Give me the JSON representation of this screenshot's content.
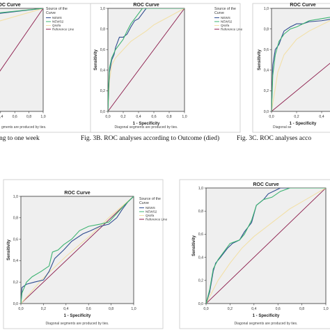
{
  "captions": {
    "fig_a": "ng to one week",
    "fig_b": "Fig. 3B. ROC analyses according to Outcome (died)",
    "fig_c": "Fig. 3C. ROC analyses acco"
  },
  "colors": {
    "news": "#2f4c8f",
    "news2": "#3cb371",
    "qsofa": "#f2e0a8",
    "reference": "#8b1a4a",
    "plot_bg": "#efefef",
    "axis": "#333333"
  },
  "chart_data": [
    {
      "id": "a",
      "type": "line",
      "title": "ROC Curve",
      "xlabel": "",
      "ylabel": "",
      "x_ticks": [
        "0,0",
        "0,2",
        "0,4",
        "0,6",
        "0,8",
        "1,0"
      ],
      "y_ticks": [],
      "xlim": [
        0,
        1
      ],
      "ylim": [
        0,
        1
      ],
      "legend": {
        "title": "Source of the Curve",
        "entries": [
          "NEWS",
          "NEWS2",
          "Qsofa",
          "Reference Line"
        ]
      },
      "footnote": "gments are produced by ties.",
      "series": [
        {
          "name": "NEWS",
          "color_key": "news",
          "x": [
            0,
            1
          ],
          "y": [
            0.92,
            1.0
          ]
        },
        {
          "name": "NEWS2",
          "color_key": "news2",
          "x": [
            0,
            1
          ],
          "y": [
            0.93,
            1.0
          ]
        },
        {
          "name": "Qsofa",
          "color_key": "qsofa",
          "x": [
            0,
            1
          ],
          "y": [
            0.8,
            1.0
          ]
        },
        {
          "name": "Reference Line",
          "color_key": "reference",
          "x": [
            0,
            1
          ],
          "y": [
            0,
            1
          ]
        }
      ]
    },
    {
      "id": "b",
      "type": "line",
      "title": "ROC Curve",
      "xlabel": "1 - Specificity",
      "ylabel": "Sensitivity",
      "x_ticks": [
        "0,0",
        "0,2",
        "0,4",
        "0,6",
        "0,8",
        "1,0"
      ],
      "y_ticks": [
        "0,0",
        "0,2",
        "0,4",
        "0,6",
        "0,8",
        "1,0"
      ],
      "xlim": [
        0,
        1
      ],
      "ylim": [
        0,
        1
      ],
      "legend": {
        "title": "Source of the Curve",
        "entries": [
          "NEWS",
          "NEWS2",
          "Qsofa",
          "Reference Line"
        ]
      },
      "footnote": "Diagonal segments are produced by ties.",
      "series": [
        {
          "name": "NEWS",
          "color_key": "news",
          "x": [
            0,
            0.01,
            0.02,
            0.05,
            0.08,
            0.1,
            0.15,
            0.2,
            0.25,
            0.3,
            0.35,
            0.4,
            0.45,
            0.5,
            0.6,
            0.7,
            0.8,
            0.9,
            1.0
          ],
          "y": [
            0,
            0.22,
            0.38,
            0.5,
            0.55,
            0.62,
            0.72,
            0.72,
            0.75,
            0.82,
            0.88,
            0.9,
            0.95,
            1.0,
            1.0,
            1.0,
            1.0,
            1.0,
            1.0
          ]
        },
        {
          "name": "NEWS2",
          "color_key": "news2",
          "x": [
            0,
            0.01,
            0.02,
            0.05,
            0.1,
            0.15,
            0.2,
            0.25,
            0.3,
            0.35,
            0.4,
            0.45,
            0.5,
            0.6,
            0.7,
            0.8,
            0.9,
            1.0
          ],
          "y": [
            0,
            0.25,
            0.42,
            0.52,
            0.6,
            0.65,
            0.7,
            0.78,
            0.85,
            0.9,
            0.95,
            1.0,
            1.0,
            1.0,
            1.0,
            1.0,
            1.0,
            1.0
          ]
        },
        {
          "name": "Qsofa",
          "color_key": "qsofa",
          "x": [
            0,
            0.02,
            0.05,
            0.1,
            0.2,
            0.3,
            0.4,
            0.5,
            0.6,
            0.7,
            0.8,
            0.9,
            1.0
          ],
          "y": [
            0,
            0.3,
            0.45,
            0.52,
            0.6,
            0.68,
            0.73,
            0.78,
            0.84,
            0.88,
            0.92,
            0.96,
            1.0
          ]
        },
        {
          "name": "Reference Line",
          "color_key": "reference",
          "x": [
            0,
            1
          ],
          "y": [
            0,
            1
          ]
        }
      ]
    },
    {
      "id": "c",
      "type": "line",
      "title": "ROC Curve",
      "xlabel": "1 - Specificity",
      "ylabel": "Sensitivity",
      "x_ticks": [
        "0,0",
        "0,2",
        "0,4"
      ],
      "y_ticks": [
        "0,0",
        "0,2",
        "0,4",
        "0,6",
        "0,8",
        "1,0"
      ],
      "xlim": [
        0,
        0.5
      ],
      "ylim": [
        0,
        1
      ],
      "legend": null,
      "footnote": "Diagonal se",
      "series": [
        {
          "name": "NEWS",
          "color_key": "news",
          "x": [
            0,
            0.01,
            0.03,
            0.06,
            0.08,
            0.1,
            0.15,
            0.2,
            0.25,
            0.3,
            0.4,
            0.5
          ],
          "y": [
            0,
            0.45,
            0.6,
            0.65,
            0.72,
            0.78,
            0.82,
            0.85,
            0.85,
            0.87,
            0.88,
            0.9
          ]
        },
        {
          "name": "NEWS2",
          "color_key": "news2",
          "x": [
            0,
            0.01,
            0.03,
            0.06,
            0.1,
            0.15,
            0.2,
            0.25,
            0.3,
            0.4,
            0.5
          ],
          "y": [
            0,
            0.35,
            0.55,
            0.68,
            0.75,
            0.8,
            0.82,
            0.85,
            0.88,
            0.9,
            0.92
          ]
        },
        {
          "name": "Qsofa",
          "color_key": "qsofa",
          "x": [
            0,
            0.05,
            0.1,
            0.2,
            0.3,
            0.4,
            0.5
          ],
          "y": [
            0,
            0.38,
            0.55,
            0.7,
            0.78,
            0.84,
            0.9
          ]
        },
        {
          "name": "Reference Line",
          "color_key": "reference",
          "x": [
            0,
            0.5
          ],
          "y": [
            0,
            0.5
          ]
        }
      ]
    },
    {
      "id": "d",
      "type": "line",
      "title": "ROC Curve",
      "xlabel": "1 - Specificity",
      "ylabel": "Sensitivity",
      "x_ticks": [
        "0,0",
        "0,2",
        "0,4",
        "0,6",
        "0,8",
        "1,0"
      ],
      "y_ticks": [
        "0,0",
        "0,2",
        "0,4",
        "0,6",
        "0,8",
        "1,0"
      ],
      "xlim": [
        0,
        1
      ],
      "ylim": [
        0,
        1
      ],
      "legend": {
        "title": "Source of the Curve",
        "entries": [
          "NEWS",
          "NEWS2",
          "Qsofa",
          "Reference Line"
        ]
      },
      "footnote": "Diagonal segments are produced by ties.",
      "series": [
        {
          "name": "NEWS",
          "color_key": "news",
          "x": [
            0,
            0.01,
            0.05,
            0.12,
            0.2,
            0.25,
            0.3,
            0.38,
            0.45,
            0.55,
            0.62,
            0.7,
            0.78,
            0.85,
            0.9,
            0.95,
            1.0
          ],
          "y": [
            0,
            0.15,
            0.18,
            0.2,
            0.22,
            0.3,
            0.42,
            0.5,
            0.58,
            0.65,
            0.68,
            0.72,
            0.74,
            0.8,
            0.88,
            0.95,
            1.0
          ]
        },
        {
          "name": "NEWS2",
          "color_key": "news2",
          "x": [
            0,
            0.01,
            0.05,
            0.1,
            0.18,
            0.25,
            0.28,
            0.33,
            0.38,
            0.45,
            0.52,
            0.6,
            0.7,
            0.78,
            0.85,
            0.92,
            1.0
          ],
          "y": [
            0,
            0.1,
            0.2,
            0.25,
            0.3,
            0.35,
            0.48,
            0.5,
            0.55,
            0.6,
            0.68,
            0.72,
            0.74,
            0.76,
            0.84,
            0.92,
            1.0
          ]
        },
        {
          "name": "Qsofa",
          "color_key": "qsofa",
          "x": [
            0,
            0.2,
            0.4,
            0.6,
            0.8,
            1.0
          ],
          "y": [
            0,
            0.24,
            0.44,
            0.62,
            0.82,
            1.0
          ]
        },
        {
          "name": "Reference Line",
          "color_key": "reference",
          "x": [
            0,
            1
          ],
          "y": [
            0,
            1
          ]
        }
      ]
    },
    {
      "id": "e",
      "type": "line",
      "title": "ROC Curve",
      "xlabel": "1 - Specificity",
      "ylabel": "Sensitivity",
      "x_ticks": [
        "0,0",
        "0,2",
        "0,4",
        "0,6",
        "0,8",
        "1,0"
      ],
      "y_ticks": [
        "0,0",
        "0,2",
        "0,4",
        "0,6",
        "0,8",
        "1,0"
      ],
      "xlim": [
        0,
        1
      ],
      "ylim": [
        0,
        1
      ],
      "legend": null,
      "footnote": "Diagonal segments are produced by ties.",
      "series": [
        {
          "name": "NEWS",
          "color_key": "news",
          "x": [
            0,
            0.03,
            0.06,
            0.08,
            0.12,
            0.18,
            0.22,
            0.28,
            0.32,
            0.38,
            0.42,
            0.48,
            0.52,
            0.58,
            0.62,
            0.72,
            0.8,
            0.9,
            1.0
          ],
          "y": [
            0,
            0.1,
            0.28,
            0.35,
            0.4,
            0.48,
            0.52,
            0.55,
            0.62,
            0.7,
            0.85,
            0.9,
            0.95,
            0.98,
            1.0,
            1.0,
            1.0,
            1.0,
            1.0
          ]
        },
        {
          "name": "NEWS2",
          "color_key": "news2",
          "x": [
            0,
            0.03,
            0.06,
            0.1,
            0.15,
            0.2,
            0.28,
            0.32,
            0.38,
            0.42,
            0.48,
            0.55,
            0.62,
            0.7,
            0.8,
            0.9,
            1.0
          ],
          "y": [
            0,
            0.12,
            0.3,
            0.38,
            0.45,
            0.52,
            0.55,
            0.6,
            0.72,
            0.85,
            0.9,
            0.92,
            0.97,
            1.0,
            1.0,
            1.0,
            1.0
          ]
        },
        {
          "name": "Qsofa",
          "color_key": "qsofa",
          "x": [
            0,
            0.1,
            0.2,
            0.3,
            0.4,
            0.5,
            0.6,
            0.7,
            0.8,
            0.9,
            1.0
          ],
          "y": [
            0,
            0.2,
            0.35,
            0.48,
            0.58,
            0.66,
            0.74,
            0.82,
            0.88,
            0.94,
            1.0
          ]
        },
        {
          "name": "Reference Line",
          "color_key": "reference",
          "x": [
            0,
            1
          ],
          "y": [
            0,
            1
          ]
        }
      ]
    }
  ]
}
